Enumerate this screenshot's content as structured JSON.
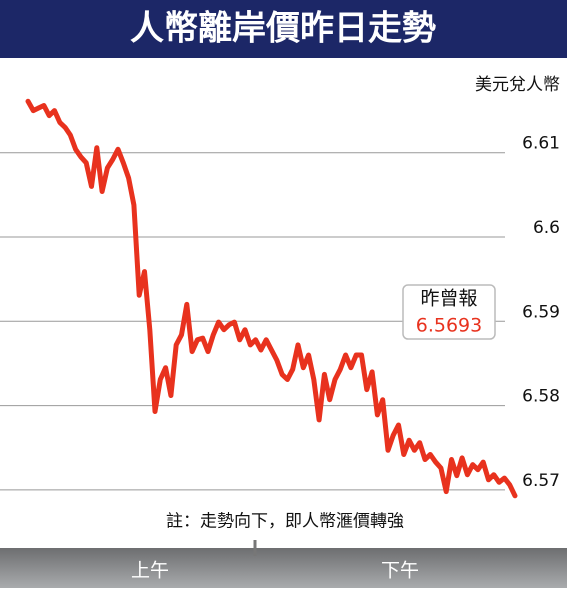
{
  "chart_data": {
    "type": "line",
    "title": "人幣離岸價昨日走勢",
    "y_label": "美元兌人幣",
    "note": "註：走勢向下，即人幣滙價轉強",
    "x_labels": [
      "上午",
      "下午"
    ],
    "annotation": {
      "label": "昨曾報",
      "value": 6.5693
    },
    "color": "#e8321e",
    "grid": true,
    "ylim": [
      6.5688,
      6.621
    ],
    "yticks": [
      6.57,
      6.58,
      6.59,
      6.6,
      6.61
    ],
    "values": [
      6.6161,
      6.615,
      6.6153,
      6.6156,
      6.6144,
      6.615,
      6.6136,
      6.613,
      6.6121,
      6.6104,
      6.6095,
      6.6088,
      6.606,
      6.6106,
      6.6054,
      6.6082,
      6.6092,
      6.6104,
      6.6088,
      6.607,
      6.6038,
      6.5931,
      6.5959,
      6.589,
      6.5793,
      6.5831,
      6.5845,
      6.5812,
      6.5872,
      6.5884,
      6.592,
      6.5864,
      6.5878,
      6.588,
      6.5864,
      6.5884,
      6.5899,
      6.589,
      6.5896,
      6.5899,
      6.5878,
      6.589,
      6.5872,
      6.5878,
      6.5866,
      6.5878,
      6.5866,
      6.5854,
      6.5837,
      6.5831,
      6.5843,
      6.5872,
      6.5845,
      6.586,
      6.5831,
      6.5783,
      6.5837,
      6.5807,
      6.5831,
      6.5843,
      6.586,
      6.5845,
      6.586,
      6.586,
      6.5819,
      6.584,
      6.5789,
      6.5807,
      6.5747,
      6.5765,
      6.5777,
      6.5742,
      6.5759,
      6.5747,
      6.5756,
      6.5736,
      6.5742,
      6.5733,
      6.5726,
      6.5698,
      6.5736,
      6.5717,
      6.5738,
      6.5718,
      6.573,
      6.5724,
      6.5733,
      6.5712,
      6.5718,
      6.5709,
      6.5714,
      6.5706,
      6.5693
    ]
  }
}
